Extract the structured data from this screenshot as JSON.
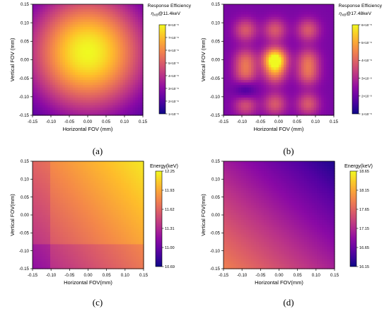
{
  "figure": {
    "panels": [
      {
        "letter": "(a)",
        "colorbar": {
          "title_line1": "Response Efficiency",
          "title_line2_symbol": "η",
          "title_line2_sub": "XB",
          "title_line2_rest": "@11.4keV",
          "ticks": [
            "8×10⁻⁸",
            "7×10⁻⁸",
            "6×10⁻⁸",
            "5×10⁻⁸",
            "4×10⁻⁸",
            "3×10⁻⁸",
            "2×10⁻⁸",
            "1×10⁻⁸"
          ]
        }
      },
      {
        "letter": "(b)",
        "colorbar": {
          "title_line1": "Response Efficiency",
          "title_line2_symbol": "η",
          "title_line2_sub": "XB",
          "title_line2_rest": "@17.48keV",
          "ticks": [
            "6×10⁻⁸",
            "5×10⁻⁸",
            "4×10⁻⁸",
            "3×10⁻⁸",
            "2×10⁻⁸",
            "1×10⁻⁸"
          ]
        }
      },
      {
        "letter": "(c)",
        "colorbar": {
          "title": "Energy(keV)",
          "ticks": [
            "12.25",
            "11.93",
            "11.62",
            "11.31",
            "11.00",
            "10.69"
          ]
        }
      },
      {
        "letter": "(d)",
        "colorbar": {
          "title": "Energy(keV)",
          "ticks": [
            "18.65",
            "18.15",
            "17.65",
            "17.15",
            "16.65",
            "16.15"
          ]
        }
      }
    ]
  },
  "chart_data": [
    {
      "type": "heatmap",
      "title": "",
      "xlabel": "Horizontal FOV (mm)",
      "ylabel": "Vertical FOV (mm)",
      "xlim": [
        -0.15,
        0.15
      ],
      "ylim": [
        -0.15,
        0.15
      ],
      "x_ticks": [
        "-0.15",
        "-0.10",
        "-0.05",
        "0.00",
        "0.05",
        "0.10",
        "0.15"
      ],
      "y_ticks": [
        "0.15",
        "0.10",
        "0.05",
        "0.00",
        "-0.05",
        "-0.10",
        "-0.15"
      ],
      "colormap": "plasma",
      "colorbar_range": [
        1e-08,
        8e-08
      ],
      "pattern": "single broad maximum centered near (0.00, 0.02) mm, decreasing toward the corners"
    },
    {
      "type": "heatmap",
      "title": "",
      "xlabel": "Horizontal FOV (mm)",
      "ylabel": "Vertical FOV (mm)",
      "xlim": [
        -0.15,
        0.15
      ],
      "ylim": [
        -0.15,
        0.15
      ],
      "x_ticks": [
        "-0.15",
        "-0.10",
        "-0.05",
        "0.00",
        "0.05",
        "0.10",
        "0.15"
      ],
      "y_ticks": [
        "0.15",
        "0.10",
        "0.05",
        "0.00",
        "-0.05",
        "-0.10",
        "-0.15"
      ],
      "colormap": "plasma",
      "colorbar_range": [
        1e-08,
        6e-08
      ],
      "pattern": "grid of maxima near x in {-0.09, -0.01, 0.08} and y in {-0.12, -0.04, 0.00, 0.08}, strongest at (-0.01, 0.00)"
    },
    {
      "type": "heatmap",
      "title": "",
      "xlabel": "Horizontal FOV(mm)",
      "ylabel": "Vertical FOV(mm)",
      "xlim": [
        -0.15,
        0.15
      ],
      "ylim": [
        -0.15,
        0.15
      ],
      "x_ticks": [
        "-0.15",
        "-0.10",
        "-0.05",
        "0.00",
        "0.05",
        "0.10",
        "0.15"
      ],
      "y_ticks": [
        "0.15",
        "0.10",
        "0.05",
        "0.00",
        "-0.05",
        "-0.10",
        "-0.15"
      ],
      "colormap": "plasma",
      "colorbar_range": [
        10.69,
        12.25
      ],
      "pattern": "energy highest toward top-right corner (≈12.25 keV) and lowest at bottom-left (≈10.69 keV), with step discontinuities at x ≈ -0.10 and y ≈ -0.08"
    },
    {
      "type": "heatmap",
      "title": "",
      "xlabel": "Horizontal FOV(mm)",
      "ylabel": "Vertical FOV(mm)",
      "xlim": [
        -0.15,
        0.15
      ],
      "ylim": [
        -0.15,
        0.15
      ],
      "x_ticks": [
        "-0.15",
        "-0.10",
        "-0.05",
        "0.00",
        "0.05",
        "0.10",
        "0.15"
      ],
      "y_ticks": [
        "0.15",
        "0.10",
        "0.05",
        "0.00",
        "-0.05",
        "-0.10",
        "-0.15"
      ],
      "colormap": "plasma",
      "colorbar_range": [
        16.15,
        18.65
      ],
      "pattern": "smooth linear gradient, highest near bottom-left (≈18.65 keV) to lowest at top-right (≈16.15 keV)"
    }
  ]
}
